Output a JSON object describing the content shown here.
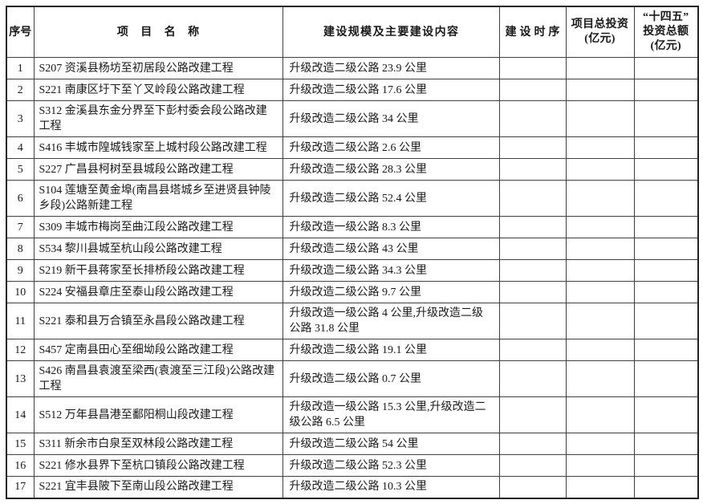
{
  "table": {
    "headers": {
      "no": "序号",
      "name": "项目名称",
      "scale": "建设规模及主要建设内容",
      "schedule": "建设时序",
      "investment": "项目总投资\n(亿元)",
      "plan": "“十四五”\n投资总额\n(亿元)"
    },
    "rows": [
      {
        "no": "1",
        "name": "S207 资溪县杨坊至初居段公路改建工程",
        "scale": "升级改造二级公路 23.9 公里",
        "schedule": "",
        "investment": "",
        "plan": ""
      },
      {
        "no": "2",
        "name": "S221 南康区圩下至丫叉岭段公路改建工程",
        "scale": "升级改造二级公路 17.6 公里",
        "schedule": "",
        "investment": "",
        "plan": ""
      },
      {
        "no": "3",
        "name": "S312 金溪县东金分界至下彭村委会段公路改建工程",
        "scale": "升级改造二级公路 34 公里",
        "schedule": "",
        "investment": "",
        "plan": ""
      },
      {
        "no": "4",
        "name": "S416 丰城市隍城钱家至上城村段公路改建工程",
        "scale": "升级改造二级公路 2.6 公里",
        "schedule": "",
        "investment": "",
        "plan": ""
      },
      {
        "no": "5",
        "name": "S227 广昌县柯树至县城段公路改建工程",
        "scale": "升级改造二级公路 28.3 公里",
        "schedule": "",
        "investment": "",
        "plan": ""
      },
      {
        "no": "6",
        "name": "S104 莲塘至黄金埠(南昌县塔城乡至进贤县钟陵乡段)公路新建工程",
        "scale": "升级改造二级公路 52.4 公里",
        "schedule": "",
        "investment": "",
        "plan": ""
      },
      {
        "no": "7",
        "name": "S309 丰城市梅岗至曲江段公路改建工程",
        "scale": "升级改造一级公路 8.3 公里",
        "schedule": "",
        "investment": "",
        "plan": ""
      },
      {
        "no": "8",
        "name": "S534 黎川县城至杭山段公路改建工程",
        "scale": "升级改造二级公路 43 公里",
        "schedule": "",
        "investment": "",
        "plan": ""
      },
      {
        "no": "9",
        "name": "S219 新干县蒋家至长排桥段公路改建工程",
        "scale": "升级改造二级公路 34.3 公里",
        "schedule": "",
        "investment": "",
        "plan": ""
      },
      {
        "no": "10",
        "name": "S224 安福县章庄至泰山段公路改建工程",
        "scale": "升级改造二级公路 9.7 公里",
        "schedule": "",
        "investment": "",
        "plan": ""
      },
      {
        "no": "11",
        "name": "S221 泰和县万合镇至永昌段公路改建工程",
        "scale": "升级改造一级公路 4 公里,升级改造二级公路 31.8 公里",
        "schedule": "",
        "investment": "",
        "plan": ""
      },
      {
        "no": "12",
        "name": "S457 定南县田心至细坳段公路改建工程",
        "scale": "升级改造二级公路 19.1 公里",
        "schedule": "",
        "investment": "",
        "plan": ""
      },
      {
        "no": "13",
        "name": "S426 南昌县袁渡至梁西(袁渡至三江段)公路改建工程",
        "scale": "升级改造二级公路 0.7 公里",
        "schedule": "",
        "investment": "",
        "plan": ""
      },
      {
        "no": "14",
        "name": "S512 万年县昌港至鄱阳桐山段改建工程",
        "scale": "升级改造一级公路 15.3 公里,升级改造二级公路 6.5 公里",
        "schedule": "",
        "investment": "",
        "plan": ""
      },
      {
        "no": "15",
        "name": "S311 新余市白泉至双林段公路改建工程",
        "scale": "升级改造二级公路 54 公里",
        "schedule": "",
        "investment": "",
        "plan": ""
      },
      {
        "no": "16",
        "name": "S221 修水县界下至杭口镇段公路改建工程",
        "scale": "升级改造二级公路 52.3 公里",
        "schedule": "",
        "investment": "",
        "plan": ""
      },
      {
        "no": "17",
        "name": "S221 宜丰县陂下至南山段公路改建工程",
        "scale": "升级改造二级公路 10.3 公里",
        "schedule": "",
        "investment": "",
        "plan": ""
      }
    ]
  }
}
